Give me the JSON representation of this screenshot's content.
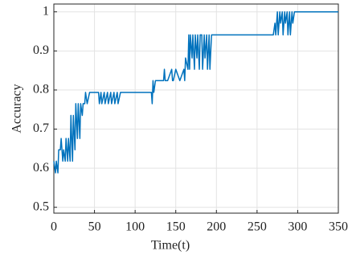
{
  "chart_data": {
    "type": "line",
    "xlabel": "Time(t)",
    "ylabel": "Accuracy",
    "x": [
      0,
      2,
      3,
      5,
      6,
      8,
      9,
      11,
      12,
      14,
      15,
      17,
      18,
      20,
      21,
      23,
      24,
      26,
      27,
      29,
      30,
      32,
      33,
      35,
      36,
      38,
      39,
      41,
      44,
      45,
      50,
      55,
      56,
      58,
      59,
      62,
      63,
      66,
      67,
      70,
      71,
      74,
      75,
      78,
      79,
      82,
      83,
      120,
      121,
      122,
      123,
      125,
      130,
      135,
      136,
      137,
      140,
      145,
      146,
      147,
      150,
      155,
      160,
      161,
      162,
      165,
      166,
      167,
      168,
      170,
      171,
      173,
      174,
      176,
      177,
      179,
      180,
      182,
      183,
      185,
      186,
      188,
      189,
      191,
      192,
      194,
      195,
      270,
      272,
      273,
      275,
      276,
      278,
      279,
      281,
      282,
      284,
      285,
      287,
      288,
      290,
      291,
      293,
      294,
      296,
      298,
      350
    ],
    "series": [
      {
        "color": "#0072bd",
        "values": [
          0.618,
          0.588,
          0.618,
          0.588,
          0.647,
          0.647,
          0.676,
          0.618,
          0.647,
          0.618,
          0.676,
          0.618,
          0.676,
          0.618,
          0.735,
          0.618,
          0.735,
          0.647,
          0.765,
          0.676,
          0.765,
          0.676,
          0.765,
          0.735,
          0.765,
          0.765,
          0.794,
          0.765,
          0.794,
          0.794,
          0.794,
          0.794,
          0.765,
          0.794,
          0.765,
          0.794,
          0.765,
          0.794,
          0.765,
          0.794,
          0.765,
          0.794,
          0.765,
          0.794,
          0.765,
          0.794,
          0.794,
          0.794,
          0.765,
          0.824,
          0.794,
          0.824,
          0.824,
          0.824,
          0.853,
          0.824,
          0.824,
          0.853,
          0.824,
          0.824,
          0.853,
          0.824,
          0.853,
          0.824,
          0.882,
          0.853,
          0.941,
          0.853,
          0.941,
          0.882,
          0.941,
          0.853,
          0.941,
          0.882,
          0.941,
          0.853,
          0.941,
          0.941,
          0.853,
          0.941,
          0.882,
          0.941,
          0.853,
          0.941,
          0.853,
          0.941,
          0.941,
          0.941,
          0.971,
          0.941,
          1,
          0.941,
          1,
          0.971,
          1,
          0.941,
          1,
          0.971,
          1,
          0.941,
          1,
          0.941,
          1,
          0.971,
          1,
          1,
          1
        ]
      }
    ],
    "xlim": [
      0,
      350
    ],
    "xticks": [
      0,
      50,
      100,
      150,
      200,
      250,
      300,
      350
    ],
    "ylim": [
      0.485,
      1.02
    ],
    "yticks": [
      0.5,
      0.6,
      0.7,
      0.8,
      0.9,
      1
    ],
    "grid": true
  }
}
